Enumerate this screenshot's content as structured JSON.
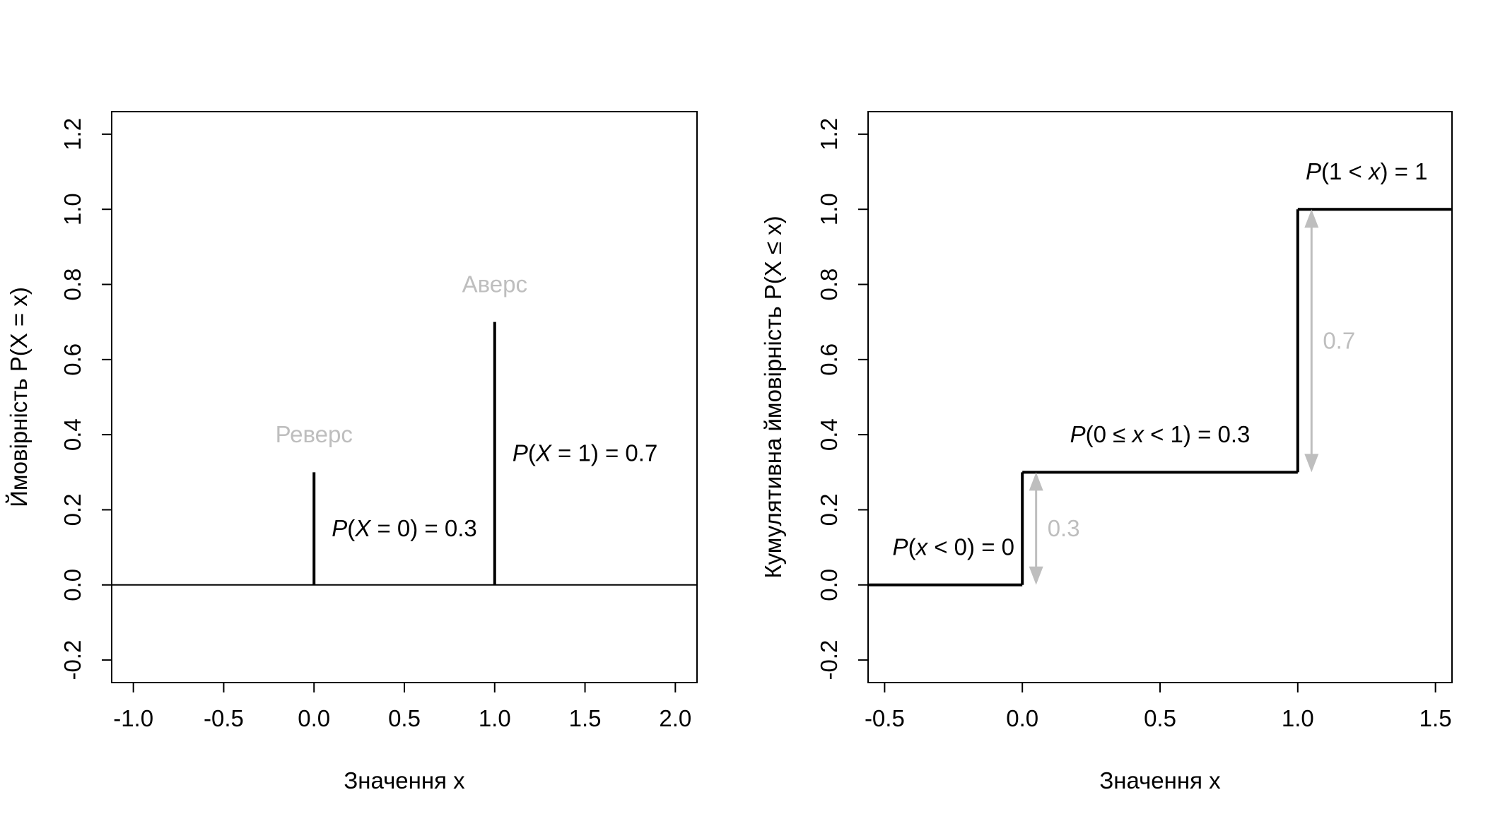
{
  "chart_data": [
    {
      "type": "line",
      "subtype": "probability-mass-stems",
      "xlabel": "Значення x",
      "ylabel": "Ймовірність P(X = x)",
      "xlim": [
        -1.12,
        2.12
      ],
      "ylim": [
        -0.26,
        1.26
      ],
      "xticks": [
        -1.0,
        -0.5,
        0.0,
        0.5,
        1.0,
        1.5,
        2.0
      ],
      "xtick_labels": [
        "-1.0",
        "-0.5",
        "0.0",
        "0.5",
        "1.0",
        "1.5",
        "2.0"
      ],
      "yticks": [
        -0.2,
        0.0,
        0.2,
        0.4,
        0.6,
        0.8,
        1.0,
        1.2
      ],
      "ytick_labels": [
        "-0.2",
        "0.0",
        "0.2",
        "0.4",
        "0.6",
        "0.8",
        "1.0",
        "1.2"
      ],
      "hline": 0,
      "grid": false,
      "stems": [
        {
          "x": 0,
          "y": 0.3
        },
        {
          "x": 1,
          "y": 0.7
        }
      ],
      "outcome_labels": [
        {
          "text": "Реверс",
          "x": 0,
          "y": 0.4,
          "color": "#bebebe"
        },
        {
          "text": "Аверс",
          "x": 1,
          "y": 0.8,
          "color": "#bebebe"
        }
      ],
      "annotations": [
        {
          "parts": [
            "P",
            "(",
            "X",
            " = 0",
            ")",
            " = 0.3"
          ],
          "x": 0.5,
          "y": 0.15
        },
        {
          "parts": [
            "P",
            "(",
            "X",
            " = 1",
            ")",
            " = 0.7"
          ],
          "x": 1.5,
          "y": 0.35
        }
      ]
    },
    {
      "type": "line",
      "subtype": "step-cdf",
      "xlabel": "Значення x",
      "ylabel": "Кумулятивна ймовірність P(X ≤ x)",
      "xlim": [
        -0.56,
        1.56
      ],
      "ylim": [
        -0.26,
        1.26
      ],
      "xticks": [
        -0.5,
        0.0,
        0.5,
        1.0,
        1.5
      ],
      "xtick_labels": [
        "-0.5",
        "0.0",
        "0.5",
        "1.0",
        "1.5"
      ],
      "yticks": [
        -0.2,
        0.0,
        0.2,
        0.4,
        0.6,
        0.8,
        1.0,
        1.2
      ],
      "ytick_labels": [
        "-0.2",
        "0.0",
        "0.2",
        "0.4",
        "0.6",
        "0.8",
        "1.0",
        "1.2"
      ],
      "grid": false,
      "steps": [
        {
          "x_from": -0.56,
          "x_to": 0,
          "y": 0
        },
        {
          "x_from": 0,
          "x_to": 1,
          "y": 0.3
        },
        {
          "x_from": 1,
          "x_to": 1.56,
          "y": 1
        }
      ],
      "jumps": [
        {
          "x": 0.05,
          "from": 0,
          "to": 0.3,
          "label": "0.3",
          "label_x": 0.15,
          "label_y": 0.15,
          "color": "#bebebe"
        },
        {
          "x": 1.05,
          "from": 0.3,
          "to": 1.0,
          "label": "0.7",
          "label_x": 1.15,
          "label_y": 0.65,
          "color": "#bebebe"
        }
      ],
      "annotations": [
        {
          "parts": [
            "P",
            "(",
            "x",
            " < 0",
            ")",
            " = 0"
          ],
          "x": -0.25,
          "y": 0.1
        },
        {
          "parts": [
            "P",
            "(",
            "0 ≤ ",
            "x",
            " < 1",
            ")",
            " = 0.3"
          ],
          "x": 0.5,
          "y": 0.4
        },
        {
          "parts": [
            "P",
            "(",
            "1 < ",
            "x",
            ")",
            " = 1"
          ],
          "x": 1.25,
          "y": 1.1
        }
      ]
    }
  ]
}
